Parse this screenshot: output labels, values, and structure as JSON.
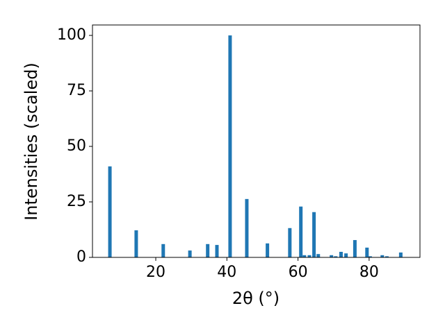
{
  "chart_data": {
    "type": "bar",
    "xlabel": "2θ (°)",
    "ylabel": "Intensities (scaled)",
    "x": [
      7.1,
      14.5,
      22.1,
      29.6,
      34.6,
      37.2,
      40.9,
      45.6,
      51.4,
      57.7,
      60.8,
      61.8,
      63.2,
      64.5,
      65.7,
      69.4,
      70.6,
      72.1,
      73.5,
      76.0,
      79.4,
      80.3,
      83.7,
      85.0,
      88.9
    ],
    "values": [
      41,
      12.2,
      6,
      3.1,
      6,
      5.6,
      100,
      26.3,
      6.3,
      13.2,
      22.9,
      1,
      1,
      20.4,
      1.5,
      1,
      0.5,
      2.5,
      1.8,
      7.8,
      4.4,
      0.5,
      1,
      0.5,
      2.2
    ],
    "color": "#1f77b4",
    "xlim": [
      2.2,
      94.3
    ],
    "xticks": [
      20,
      40,
      60,
      80
    ],
    "ylim": [
      0,
      104.7
    ],
    "yticks": [
      0,
      25,
      50,
      75,
      100
    ],
    "grid": false
  }
}
